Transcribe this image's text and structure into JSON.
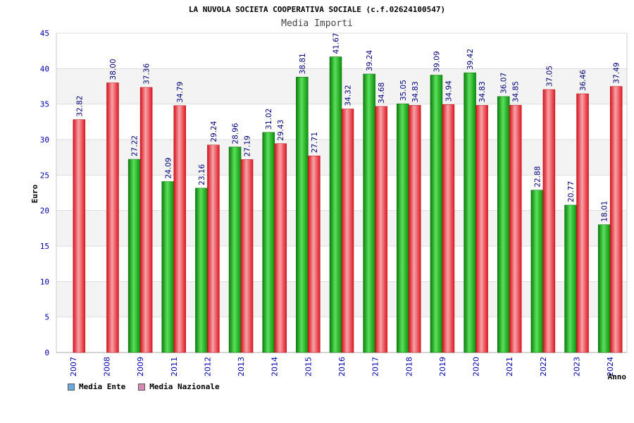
{
  "chart_data": {
    "type": "bar",
    "title": "LA NUVOLA SOCIETA COOPERATIVA SOCIALE (c.f.02624100547)",
    "subtitle": "Media Importi",
    "xlabel": "Anno",
    "ylabel": "Euro",
    "ylim": [
      0,
      45
    ],
    "yticks": [
      0,
      5,
      10,
      15,
      20,
      25,
      30,
      35,
      40,
      45
    ],
    "grid": true,
    "legend_position": "bottom-left",
    "categories": [
      "2007",
      "2008",
      "2009",
      "2011",
      "2012",
      "2013",
      "2014",
      "2015",
      "2016",
      "2017",
      "2018",
      "2019",
      "2020",
      "2021",
      "2022",
      "2023",
      "2024"
    ],
    "series": [
      {
        "name": "Media Ente",
        "legend_color": "#6fa8dc",
        "bar_color": "#1aa11a",
        "values": [
          null,
          null,
          27.22,
          24.09,
          23.16,
          28.96,
          31.02,
          38.81,
          41.67,
          39.24,
          35.05,
          39.09,
          39.42,
          36.07,
          22.88,
          20.77,
          18.01
        ],
        "labels": [
          "",
          "",
          "27.22",
          "24.09",
          "23.16",
          "28.96",
          "31.02",
          "38.81",
          "41.67",
          "39.24",
          "35.05",
          "39.09",
          "39.42",
          "36.07",
          "22.88",
          "20.77",
          "18.01"
        ]
      },
      {
        "name": "Media Nazionale",
        "legend_color": "#d98cb3",
        "bar_color": "#e8202a",
        "values": [
          32.82,
          38.0,
          37.36,
          34.79,
          29.24,
          27.19,
          29.43,
          27.71,
          34.32,
          34.68,
          34.83,
          34.94,
          34.83,
          34.85,
          37.05,
          36.46,
          37.49
        ],
        "labels": [
          "32.82",
          "38.00",
          "37.36",
          "34.79",
          "29.24",
          "27.19",
          "29.43",
          "27.71",
          "34.32",
          "34.68",
          "34.83",
          "34.94",
          "34.83",
          "34.85",
          "37.05",
          "36.46",
          "37.49"
        ]
      }
    ]
  }
}
